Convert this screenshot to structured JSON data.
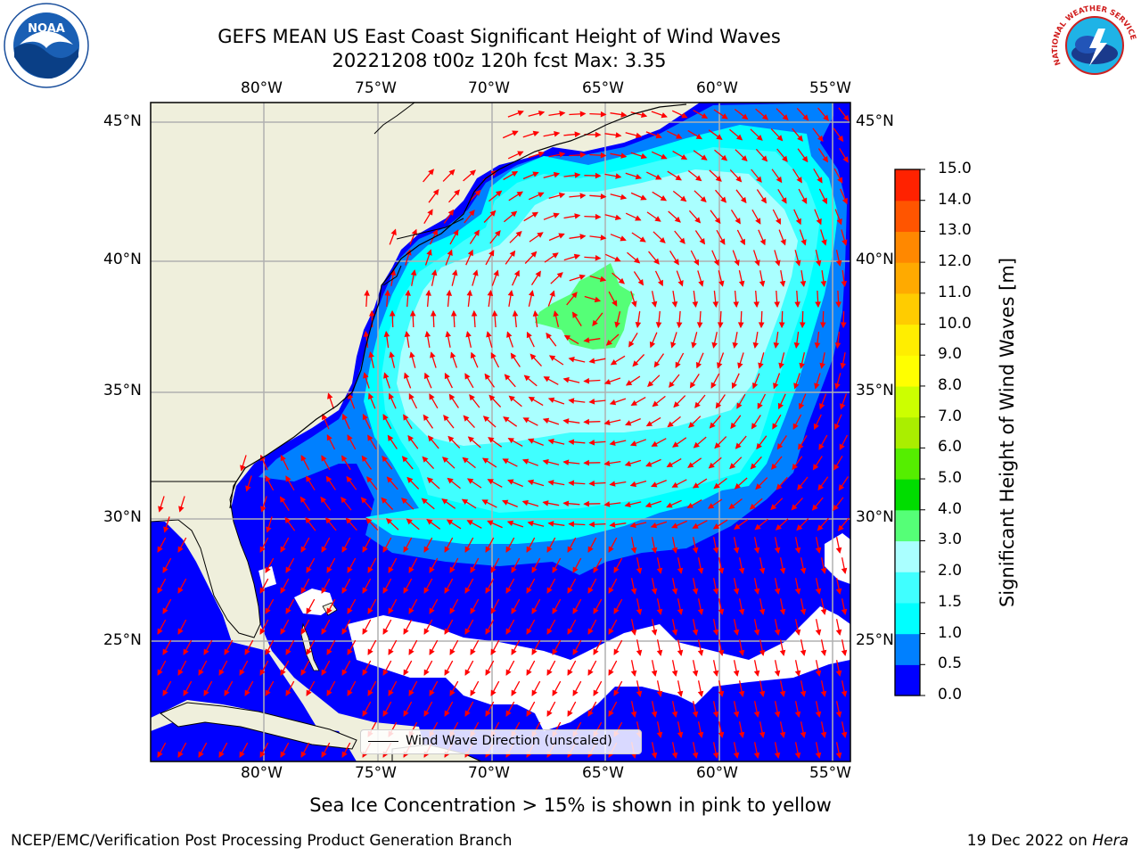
{
  "title": {
    "line1": "GEFS MEAN US East Coast Significant Height of Wind Waves",
    "line2": "20221208 t00z 120h fcst   Max: 3.35"
  },
  "logos": {
    "left": {
      "text": "NOAA",
      "icon": "noaa-logo"
    },
    "right": {
      "text": "NATIONAL WEATHER SERVICE",
      "icon": "nws-logo"
    }
  },
  "map": {
    "lon_labels": [
      "80°W",
      "75°W",
      "70°W",
      "65°W",
      "60°W",
      "55°W"
    ],
    "lat_labels": [
      "45°N",
      "40°N",
      "35°N",
      "30°N",
      "25°N"
    ],
    "extent": {
      "lon": [
        -85,
        -54.2
      ],
      "lat": [
        20.5,
        46
      ]
    },
    "legend_label": "Wind Wave Direction (unscaled)",
    "arrow_color": "#ff0000",
    "land_color": "#efefdc",
    "max_wave_height": 3.35
  },
  "colorbar": {
    "label": "Significant Height of Wind Waves [m]",
    "ticks": [
      "0.0",
      "0.5",
      "1.0",
      "1.5",
      "2.0",
      "3.0",
      "4.0",
      "5.0",
      "6.0",
      "7.0",
      "8.0",
      "9.0",
      "10.0",
      "11.0",
      "12.0",
      "13.0",
      "14.0",
      "15.0"
    ],
    "colors": [
      "#0000ff",
      "#0080ff",
      "#00ffff",
      "#40ffff",
      "#aaffff",
      "#55ff77",
      "#00dd00",
      "#55ee00",
      "#aaee00",
      "#ccff00",
      "#ffff00",
      "#ffee00",
      "#ffcc00",
      "#ffaa00",
      "#ff8800",
      "#ff5500",
      "#ff2200"
    ]
  },
  "ice_note": "Sea Ice Concentration > 15% is shown in pink to yellow",
  "footer": {
    "left": "NCEP/EMC/Verification Post Processing Product Generation Branch",
    "right_date": "19 Dec 2022 on ",
    "right_host": "Hera"
  }
}
